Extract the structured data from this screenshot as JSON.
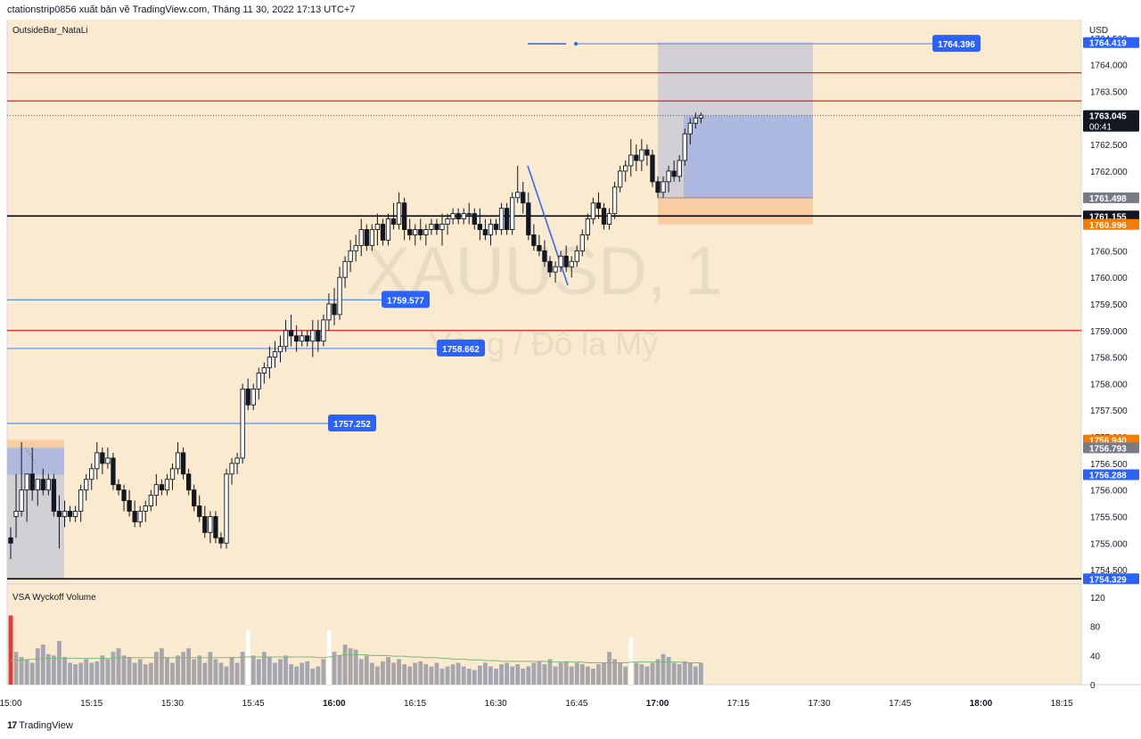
{
  "header": {
    "publish_text": "ctationstrip0856 xuất bản về TradingView.com, Tháng 11 30, 2022 17:13 UTC+7"
  },
  "footer": {
    "brand": "TradingView",
    "brand_mark": "17"
  },
  "colors": {
    "background": "#faebd0",
    "up_candle": "#ffffff",
    "down_candle": "#131722",
    "red_line": "#e02020",
    "blue_line": "#5b8ff5",
    "label_blue": "#2962ff",
    "label_orange": "#f57c00",
    "label_gray": "#787b86",
    "label_black": "#131722",
    "position_gray": "#c9c9d6",
    "position_blue": "#a7b5e0",
    "position_orange": "#f9c99c",
    "volume_gray": "#a6a6ae",
    "volume_red": "#e53935",
    "volume_white": "#ffffff",
    "volume_ma": "#7cb87c"
  },
  "chart_data": {
    "type": "candlestick",
    "symbol_watermark": "XAUUSD, 1",
    "description_watermark": "Vàng / Đô la Mỹ",
    "indicator_label": "OutsideBar_NataLi",
    "currency_label": "USD",
    "price_axis": {
      "ylim": [
        1754.3,
        1764.85
      ],
      "ticks": [
        "1764.500",
        "1764.000",
        "1763.500",
        "1763.000",
        "1762.500",
        "1762.000",
        "1761.500",
        "1761.000",
        "1760.500",
        "1760.000",
        "1759.500",
        "1759.000",
        "1758.500",
        "1758.000",
        "1757.500",
        "1757.000",
        "1756.500",
        "1756.000",
        "1755.500",
        "1755.000",
        "1754.500"
      ]
    },
    "time_axis": {
      "ticks": [
        "15:00",
        "15:15",
        "15:30",
        "15:45",
        "16:00",
        "16:15",
        "16:30",
        "16:45",
        "17:00",
        "17:15",
        "17:30",
        "17:45",
        "18:00",
        "18:15"
      ],
      "bold_ticks": [
        "16:00",
        "17:00",
        "18:00"
      ]
    },
    "horizontal_lines": [
      {
        "price": 1763.85,
        "color": "red"
      },
      {
        "price": 1763.32,
        "color": "red"
      },
      {
        "price": 1759.0,
        "color": "red"
      },
      {
        "price": 1761.155,
        "color": "black"
      },
      {
        "price": 1754.329,
        "color": "black"
      }
    ],
    "price_labels": [
      {
        "text": "1764.419",
        "price": 1764.419,
        "style": "blue"
      },
      {
        "text": "1763.045",
        "price": 1763.045,
        "style": "black",
        "countdown": "00:41"
      },
      {
        "text": "1761.498",
        "price": 1761.498,
        "style": "gray"
      },
      {
        "text": "1761.155",
        "price": 1761.155,
        "style": "black"
      },
      {
        "text": "1760.996",
        "price": 1760.996,
        "style": "orange"
      },
      {
        "text": "1756.940",
        "price": 1756.94,
        "style": "orange"
      },
      {
        "text": "1756.793",
        "price": 1756.793,
        "style": "gray"
      },
      {
        "text": "1756.288",
        "price": 1756.288,
        "style": "blue"
      },
      {
        "text": "1754.329",
        "price": 1754.329,
        "style": "blue"
      }
    ],
    "level_callouts": [
      {
        "text": "1764.396",
        "price": 1764.396
      },
      {
        "text": "1759.577",
        "price": 1759.577
      },
      {
        "text": "1758.662",
        "price": 1758.662
      },
      {
        "text": "1757.252",
        "price": 1757.252
      }
    ],
    "candles": [
      {
        "o": 1755.1,
        "h": 1755.3,
        "l": 1754.7,
        "c": 1755.0
      },
      {
        "o": 1755.5,
        "h": 1756.3,
        "l": 1755.1,
        "c": 1755.6
      },
      {
        "o": 1755.6,
        "h": 1756.9,
        "l": 1755.5,
        "c": 1756.0
      },
      {
        "o": 1756.0,
        "h": 1756.3,
        "l": 1755.4,
        "c": 1756.3
      },
      {
        "o": 1756.3,
        "h": 1756.8,
        "l": 1755.8,
        "c": 1756.0
      },
      {
        "o": 1756.0,
        "h": 1756.2,
        "l": 1755.7,
        "c": 1756.2
      },
      {
        "o": 1756.2,
        "h": 1756.4,
        "l": 1755.9,
        "c": 1756.0
      },
      {
        "o": 1756.0,
        "h": 1756.3,
        "l": 1755.9,
        "c": 1756.2
      },
      {
        "o": 1756.2,
        "h": 1756.3,
        "l": 1755.5,
        "c": 1755.6
      },
      {
        "o": 1755.6,
        "h": 1755.9,
        "l": 1754.9,
        "c": 1755.5
      },
      {
        "o": 1755.5,
        "h": 1755.8,
        "l": 1755.3,
        "c": 1755.6
      },
      {
        "o": 1755.6,
        "h": 1755.7,
        "l": 1755.4,
        "c": 1755.5
      },
      {
        "o": 1755.5,
        "h": 1755.7,
        "l": 1755.4,
        "c": 1755.6
      },
      {
        "o": 1755.6,
        "h": 1756.1,
        "l": 1755.4,
        "c": 1756.0
      },
      {
        "o": 1756.0,
        "h": 1756.3,
        "l": 1755.8,
        "c": 1756.2
      },
      {
        "o": 1756.2,
        "h": 1756.5,
        "l": 1756.0,
        "c": 1756.4
      },
      {
        "o": 1756.4,
        "h": 1756.9,
        "l": 1756.2,
        "c": 1756.7
      },
      {
        "o": 1756.7,
        "h": 1756.8,
        "l": 1756.3,
        "c": 1756.5
      },
      {
        "o": 1756.5,
        "h": 1756.8,
        "l": 1756.4,
        "c": 1756.6
      },
      {
        "o": 1756.6,
        "h": 1756.7,
        "l": 1756.0,
        "c": 1756.1
      },
      {
        "o": 1756.1,
        "h": 1756.2,
        "l": 1755.9,
        "c": 1756.0
      },
      {
        "o": 1756.0,
        "h": 1756.1,
        "l": 1755.6,
        "c": 1755.8
      },
      {
        "o": 1755.8,
        "h": 1756.0,
        "l": 1755.5,
        "c": 1755.6
      },
      {
        "o": 1755.6,
        "h": 1755.8,
        "l": 1755.3,
        "c": 1755.4
      },
      {
        "o": 1755.4,
        "h": 1755.7,
        "l": 1755.3,
        "c": 1755.6
      },
      {
        "o": 1755.6,
        "h": 1755.8,
        "l": 1755.4,
        "c": 1755.7
      },
      {
        "o": 1755.7,
        "h": 1756.0,
        "l": 1755.6,
        "c": 1755.9
      },
      {
        "o": 1755.9,
        "h": 1756.3,
        "l": 1755.7,
        "c": 1756.1
      },
      {
        "o": 1756.1,
        "h": 1756.2,
        "l": 1755.9,
        "c": 1756.0
      },
      {
        "o": 1756.0,
        "h": 1756.3,
        "l": 1755.9,
        "c": 1756.2
      },
      {
        "o": 1756.2,
        "h": 1756.5,
        "l": 1756.0,
        "c": 1756.4
      },
      {
        "o": 1756.4,
        "h": 1756.9,
        "l": 1756.3,
        "c": 1756.7
      },
      {
        "o": 1756.7,
        "h": 1756.8,
        "l": 1756.2,
        "c": 1756.3
      },
      {
        "o": 1756.3,
        "h": 1756.4,
        "l": 1755.9,
        "c": 1756.0
      },
      {
        "o": 1756.0,
        "h": 1756.1,
        "l": 1755.6,
        "c": 1755.7
      },
      {
        "o": 1755.7,
        "h": 1755.9,
        "l": 1755.4,
        "c": 1755.5
      },
      {
        "o": 1755.5,
        "h": 1755.7,
        "l": 1755.1,
        "c": 1755.2
      },
      {
        "o": 1755.2,
        "h": 1755.6,
        "l": 1755.0,
        "c": 1755.5
      },
      {
        "o": 1755.5,
        "h": 1755.6,
        "l": 1755.0,
        "c": 1755.1
      },
      {
        "o": 1755.1,
        "h": 1755.2,
        "l": 1754.9,
        "c": 1755.0
      },
      {
        "o": 1755.0,
        "h": 1756.4,
        "l": 1754.9,
        "c": 1756.3
      },
      {
        "o": 1756.3,
        "h": 1756.6,
        "l": 1756.1,
        "c": 1756.5
      },
      {
        "o": 1756.5,
        "h": 1756.7,
        "l": 1756.3,
        "c": 1756.6
      },
      {
        "o": 1756.6,
        "h": 1758.0,
        "l": 1756.5,
        "c": 1757.9
      },
      {
        "o": 1757.9,
        "h": 1758.1,
        "l": 1757.5,
        "c": 1757.6
      },
      {
        "o": 1757.6,
        "h": 1758.0,
        "l": 1757.5,
        "c": 1757.9
      },
      {
        "o": 1757.9,
        "h": 1758.3,
        "l": 1757.7,
        "c": 1758.2
      },
      {
        "o": 1758.2,
        "h": 1758.4,
        "l": 1758.0,
        "c": 1758.3
      },
      {
        "o": 1758.3,
        "h": 1758.7,
        "l": 1758.1,
        "c": 1758.5
      },
      {
        "o": 1758.5,
        "h": 1758.8,
        "l": 1758.3,
        "c": 1758.6
      },
      {
        "o": 1758.6,
        "h": 1758.9,
        "l": 1758.4,
        "c": 1758.7
      },
      {
        "o": 1758.7,
        "h": 1759.2,
        "l": 1758.6,
        "c": 1759.0
      },
      {
        "o": 1759.0,
        "h": 1759.3,
        "l": 1758.7,
        "c": 1758.9
      },
      {
        "o": 1758.9,
        "h": 1759.1,
        "l": 1758.6,
        "c": 1758.8
      },
      {
        "o": 1758.8,
        "h": 1759.0,
        "l": 1758.7,
        "c": 1758.9
      },
      {
        "o": 1758.9,
        "h": 1759.0,
        "l": 1758.7,
        "c": 1758.8
      },
      {
        "o": 1758.8,
        "h": 1759.2,
        "l": 1758.5,
        "c": 1759.0
      },
      {
        "o": 1759.0,
        "h": 1759.2,
        "l": 1758.6,
        "c": 1758.8
      },
      {
        "o": 1758.8,
        "h": 1759.3,
        "l": 1758.7,
        "c": 1759.2
      },
      {
        "o": 1759.2,
        "h": 1759.7,
        "l": 1759.0,
        "c": 1759.5
      },
      {
        "o": 1759.5,
        "h": 1759.8,
        "l": 1759.1,
        "c": 1759.3
      },
      {
        "o": 1759.3,
        "h": 1760.2,
        "l": 1759.2,
        "c": 1760.0
      },
      {
        "o": 1760.0,
        "h": 1760.4,
        "l": 1759.8,
        "c": 1760.3
      },
      {
        "o": 1760.3,
        "h": 1760.7,
        "l": 1760.1,
        "c": 1760.5
      },
      {
        "o": 1760.5,
        "h": 1760.8,
        "l": 1760.3,
        "c": 1760.6
      },
      {
        "o": 1760.6,
        "h": 1761.1,
        "l": 1760.4,
        "c": 1760.9
      },
      {
        "o": 1760.9,
        "h": 1761.0,
        "l": 1760.5,
        "c": 1760.6
      },
      {
        "o": 1760.6,
        "h": 1761.0,
        "l": 1760.5,
        "c": 1760.9
      },
      {
        "o": 1760.9,
        "h": 1761.2,
        "l": 1760.6,
        "c": 1761.0
      },
      {
        "o": 1761.0,
        "h": 1761.1,
        "l": 1760.6,
        "c": 1760.7
      },
      {
        "o": 1760.7,
        "h": 1761.2,
        "l": 1760.6,
        "c": 1761.1
      },
      {
        "o": 1761.1,
        "h": 1761.4,
        "l": 1760.9,
        "c": 1761.0
      },
      {
        "o": 1761.0,
        "h": 1761.6,
        "l": 1760.9,
        "c": 1761.4
      },
      {
        "o": 1761.4,
        "h": 1761.5,
        "l": 1760.7,
        "c": 1760.9
      },
      {
        "o": 1760.9,
        "h": 1761.1,
        "l": 1760.7,
        "c": 1760.8
      },
      {
        "o": 1760.8,
        "h": 1761.0,
        "l": 1760.6,
        "c": 1760.9
      },
      {
        "o": 1760.9,
        "h": 1761.1,
        "l": 1760.7,
        "c": 1760.8
      },
      {
        "o": 1760.8,
        "h": 1761.0,
        "l": 1760.6,
        "c": 1760.9
      },
      {
        "o": 1760.9,
        "h": 1761.1,
        "l": 1760.8,
        "c": 1761.0
      },
      {
        "o": 1761.0,
        "h": 1761.1,
        "l": 1760.8,
        "c": 1760.9
      },
      {
        "o": 1760.9,
        "h": 1761.2,
        "l": 1760.6,
        "c": 1761.0
      },
      {
        "o": 1761.0,
        "h": 1761.2,
        "l": 1760.8,
        "c": 1761.1
      },
      {
        "o": 1761.1,
        "h": 1761.3,
        "l": 1761.0,
        "c": 1761.2
      },
      {
        "o": 1761.2,
        "h": 1761.3,
        "l": 1761.0,
        "c": 1761.1
      },
      {
        "o": 1761.1,
        "h": 1761.3,
        "l": 1761.0,
        "c": 1761.2
      },
      {
        "o": 1761.2,
        "h": 1761.4,
        "l": 1761.0,
        "c": 1761.2
      },
      {
        "o": 1761.2,
        "h": 1761.3,
        "l": 1760.9,
        "c": 1761.0
      },
      {
        "o": 1761.0,
        "h": 1761.3,
        "l": 1760.7,
        "c": 1760.9
      },
      {
        "o": 1760.9,
        "h": 1761.1,
        "l": 1760.7,
        "c": 1760.8
      },
      {
        "o": 1760.8,
        "h": 1761.1,
        "l": 1760.6,
        "c": 1761.0
      },
      {
        "o": 1761.0,
        "h": 1761.1,
        "l": 1760.8,
        "c": 1760.9
      },
      {
        "o": 1760.9,
        "h": 1761.4,
        "l": 1760.8,
        "c": 1761.3
      },
      {
        "o": 1761.3,
        "h": 1761.4,
        "l": 1760.8,
        "c": 1760.9
      },
      {
        "o": 1760.9,
        "h": 1761.6,
        "l": 1760.8,
        "c": 1761.5
      },
      {
        "o": 1761.5,
        "h": 1762.1,
        "l": 1761.4,
        "c": 1761.6
      },
      {
        "o": 1761.6,
        "h": 1761.8,
        "l": 1761.2,
        "c": 1761.4
      },
      {
        "o": 1761.4,
        "h": 1761.6,
        "l": 1760.7,
        "c": 1760.8
      },
      {
        "o": 1760.8,
        "h": 1761.0,
        "l": 1760.5,
        "c": 1760.6
      },
      {
        "o": 1760.6,
        "h": 1760.8,
        "l": 1760.4,
        "c": 1760.5
      },
      {
        "o": 1760.5,
        "h": 1760.7,
        "l": 1760.2,
        "c": 1760.3
      },
      {
        "o": 1760.3,
        "h": 1760.4,
        "l": 1760.0,
        "c": 1760.1
      },
      {
        "o": 1760.1,
        "h": 1760.3,
        "l": 1759.9,
        "c": 1760.2
      },
      {
        "o": 1760.2,
        "h": 1760.5,
        "l": 1760.1,
        "c": 1760.4
      },
      {
        "o": 1760.4,
        "h": 1760.6,
        "l": 1760.1,
        "c": 1760.2
      },
      {
        "o": 1760.2,
        "h": 1760.4,
        "l": 1760.0,
        "c": 1760.3
      },
      {
        "o": 1760.3,
        "h": 1760.6,
        "l": 1760.2,
        "c": 1760.5
      },
      {
        "o": 1760.5,
        "h": 1760.9,
        "l": 1760.4,
        "c": 1760.8
      },
      {
        "o": 1760.8,
        "h": 1761.2,
        "l": 1760.7,
        "c": 1761.1
      },
      {
        "o": 1761.1,
        "h": 1761.5,
        "l": 1761.0,
        "c": 1761.4
      },
      {
        "o": 1761.4,
        "h": 1761.6,
        "l": 1761.1,
        "c": 1761.3
      },
      {
        "o": 1761.3,
        "h": 1761.4,
        "l": 1760.9,
        "c": 1761.0
      },
      {
        "o": 1761.0,
        "h": 1761.3,
        "l": 1760.9,
        "c": 1761.2
      },
      {
        "o": 1761.2,
        "h": 1761.8,
        "l": 1761.1,
        "c": 1761.7
      },
      {
        "o": 1761.7,
        "h": 1762.1,
        "l": 1761.6,
        "c": 1762.0
      },
      {
        "o": 1762.0,
        "h": 1762.2,
        "l": 1761.8,
        "c": 1762.1
      },
      {
        "o": 1762.1,
        "h": 1762.6,
        "l": 1761.9,
        "c": 1762.3
      },
      {
        "o": 1762.3,
        "h": 1762.5,
        "l": 1762.0,
        "c": 1762.2
      },
      {
        "o": 1762.2,
        "h": 1762.6,
        "l": 1762.0,
        "c": 1762.4
      },
      {
        "o": 1762.4,
        "h": 1762.5,
        "l": 1762.1,
        "c": 1762.3
      },
      {
        "o": 1762.3,
        "h": 1762.4,
        "l": 1761.7,
        "c": 1761.8
      },
      {
        "o": 1761.8,
        "h": 1761.9,
        "l": 1761.5,
        "c": 1761.6
      },
      {
        "o": 1761.6,
        "h": 1761.9,
        "l": 1761.5,
        "c": 1761.8
      },
      {
        "o": 1761.8,
        "h": 1762.1,
        "l": 1761.6,
        "c": 1762.0
      },
      {
        "o": 1762.0,
        "h": 1762.2,
        "l": 1761.8,
        "c": 1761.9
      },
      {
        "o": 1761.9,
        "h": 1762.3,
        "l": 1761.8,
        "c": 1762.2
      },
      {
        "o": 1762.2,
        "h": 1762.8,
        "l": 1762.1,
        "c": 1762.7
      },
      {
        "o": 1762.7,
        "h": 1763.0,
        "l": 1762.5,
        "c": 1762.9
      },
      {
        "o": 1762.9,
        "h": 1763.1,
        "l": 1762.8,
        "c": 1763.0
      },
      {
        "o": 1763.0,
        "h": 1763.1,
        "l": 1762.9,
        "c": 1763.05
      }
    ],
    "volume": {
      "indicator_label": "VSA Wyckoff Volume",
      "ylim": [
        0,
        120
      ],
      "ticks": [
        "120",
        "80",
        "40",
        "0"
      ],
      "values": [
        95,
        45,
        38,
        35,
        30,
        50,
        55,
        42,
        40,
        60,
        38,
        30,
        28,
        30,
        35,
        30,
        32,
        40,
        35,
        45,
        50,
        40,
        38,
        30,
        35,
        28,
        30,
        45,
        50,
        38,
        30,
        40,
        45,
        50,
        35,
        40,
        30,
        45,
        35,
        30,
        25,
        38,
        30,
        45,
        75,
        40,
        35,
        45,
        38,
        30,
        35,
        40,
        28,
        25,
        30,
        32,
        22,
        25,
        35,
        75,
        45,
        40,
        55,
        50,
        48,
        35,
        40,
        30,
        25,
        32,
        38,
        30,
        35,
        28,
        25,
        30,
        32,
        28,
        25,
        30,
        22,
        25,
        28,
        30,
        25,
        22,
        20,
        26,
        30,
        25,
        22,
        28,
        30,
        25,
        28,
        22,
        25,
        30,
        32,
        28,
        35,
        25,
        30,
        32,
        25,
        30,
        28,
        25,
        22,
        28,
        30,
        45,
        35,
        30,
        25,
        65,
        30,
        28,
        25,
        30,
        35,
        42,
        38,
        30,
        28,
        32,
        30,
        25,
        30
      ],
      "highlights": {
        "0": "red",
        "44": "white",
        "59": "white",
        "115": "white"
      },
      "ma_values": [
        33,
        33,
        34,
        34,
        35,
        35,
        36,
        36,
        36,
        36,
        36,
        36,
        36,
        36,
        36,
        36,
        36,
        36,
        36,
        36,
        37,
        37,
        37,
        37,
        37,
        37,
        37,
        37,
        37,
        37,
        37,
        37,
        37,
        37,
        37,
        37,
        37,
        37,
        37,
        37,
        37,
        37,
        37,
        38,
        38,
        38,
        38,
        38,
        38,
        38,
        38,
        38,
        38,
        38,
        38,
        38,
        38,
        37,
        37,
        38,
        39,
        40,
        41,
        41,
        41,
        41,
        41,
        40,
        40,
        40,
        40,
        39,
        39,
        39,
        38,
        38,
        38,
        37,
        37,
        37,
        36,
        36,
        35,
        35,
        35,
        34,
        34,
        34,
        33,
        33,
        33,
        32,
        32,
        32,
        32,
        32,
        32,
        32,
        32,
        32,
        31,
        31,
        31,
        31,
        31,
        31,
        31,
        30,
        30,
        30,
        30,
        30,
        30,
        30,
        30,
        31,
        31,
        31,
        31,
        31,
        31,
        31,
        31,
        31,
        31,
        30,
        30,
        30,
        30
      ]
    }
  }
}
